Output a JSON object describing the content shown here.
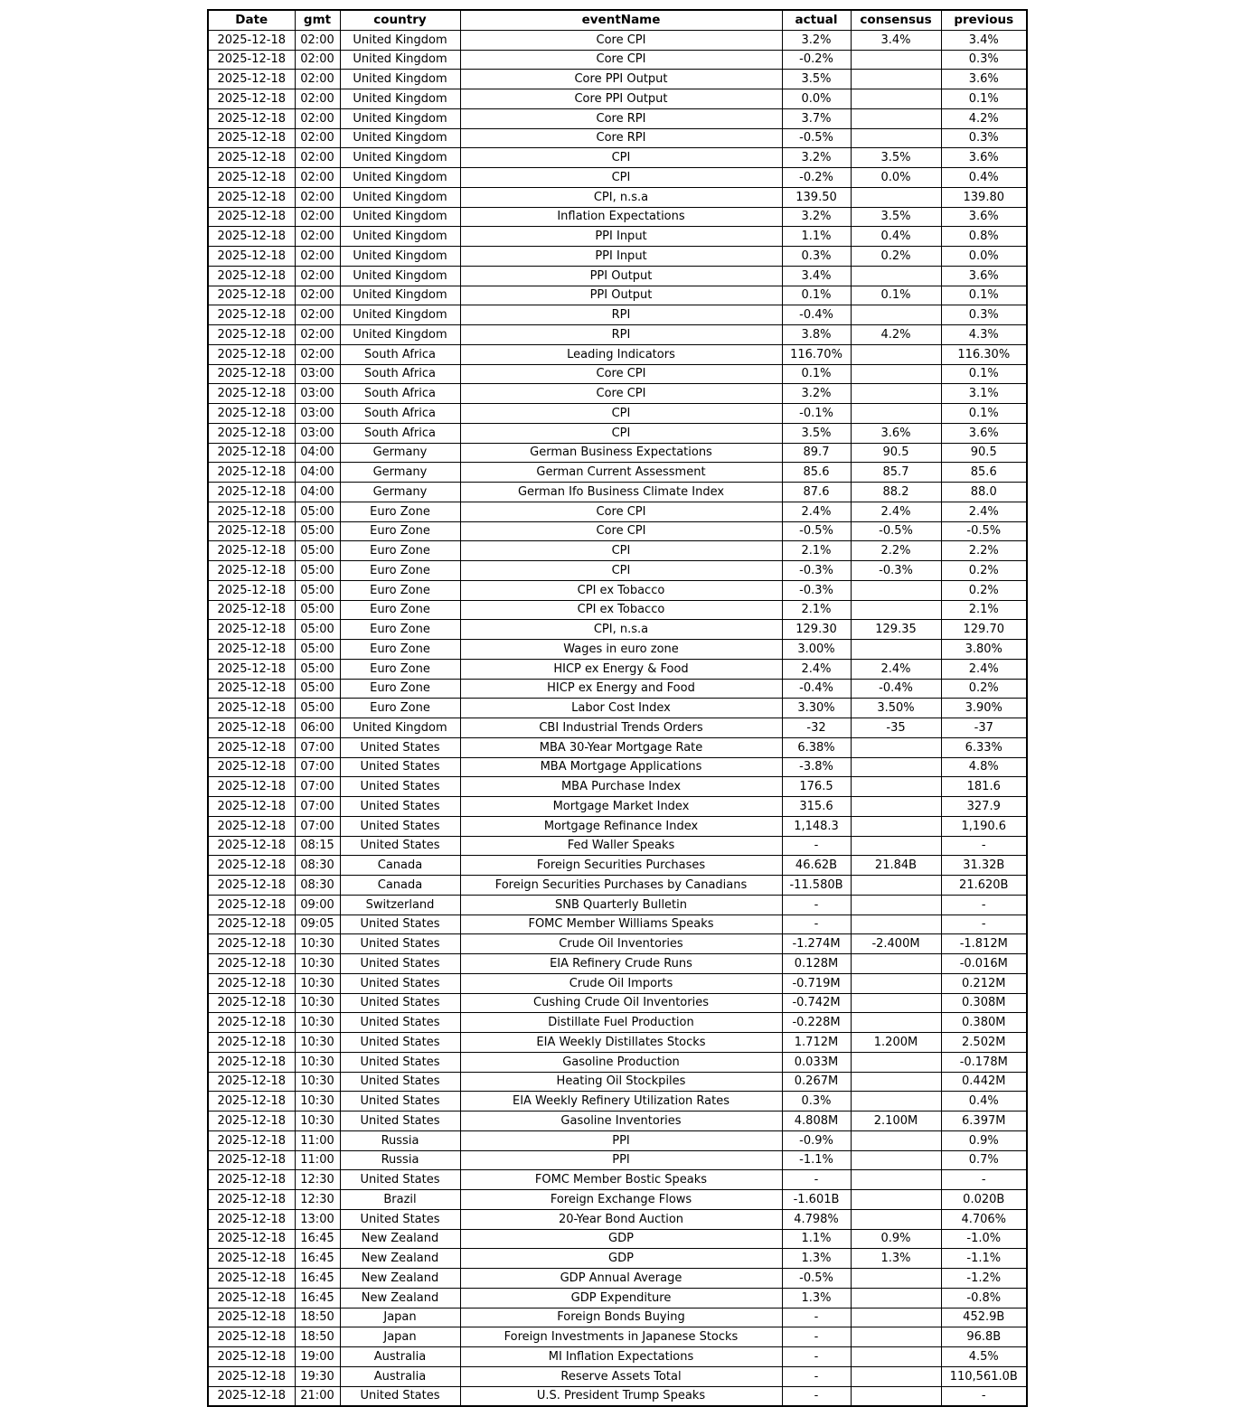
{
  "chart_data": {
    "type": "table",
    "columns": [
      "Date",
      "gmt",
      "country",
      "eventName",
      "actual",
      "consensus",
      "previous"
    ],
    "rows": [
      [
        "2025-12-18",
        "02:00",
        "United Kingdom",
        "Core CPI",
        "3.2%",
        "3.4%",
        "3.4%"
      ],
      [
        "2025-12-18",
        "02:00",
        "United Kingdom",
        "Core CPI",
        "-0.2%",
        "",
        "0.3%"
      ],
      [
        "2025-12-18",
        "02:00",
        "United Kingdom",
        "Core PPI Output",
        "3.5%",
        "",
        "3.6%"
      ],
      [
        "2025-12-18",
        "02:00",
        "United Kingdom",
        "Core PPI Output",
        "0.0%",
        "",
        "0.1%"
      ],
      [
        "2025-12-18",
        "02:00",
        "United Kingdom",
        "Core RPI",
        "3.7%",
        "",
        "4.2%"
      ],
      [
        "2025-12-18",
        "02:00",
        "United Kingdom",
        "Core RPI",
        "-0.5%",
        "",
        "0.3%"
      ],
      [
        "2025-12-18",
        "02:00",
        "United Kingdom",
        "CPI",
        "3.2%",
        "3.5%",
        "3.6%"
      ],
      [
        "2025-12-18",
        "02:00",
        "United Kingdom",
        "CPI",
        "-0.2%",
        "0.0%",
        "0.4%"
      ],
      [
        "2025-12-18",
        "02:00",
        "United Kingdom",
        "CPI, n.s.a",
        "139.50",
        "",
        "139.80"
      ],
      [
        "2025-12-18",
        "02:00",
        "United Kingdom",
        "Inflation Expectations",
        "3.2%",
        "3.5%",
        "3.6%"
      ],
      [
        "2025-12-18",
        "02:00",
        "United Kingdom",
        "PPI Input",
        "1.1%",
        "0.4%",
        "0.8%"
      ],
      [
        "2025-12-18",
        "02:00",
        "United Kingdom",
        "PPI Input",
        "0.3%",
        "0.2%",
        "0.0%"
      ],
      [
        "2025-12-18",
        "02:00",
        "United Kingdom",
        "PPI Output",
        "3.4%",
        "",
        "3.6%"
      ],
      [
        "2025-12-18",
        "02:00",
        "United Kingdom",
        "PPI Output",
        "0.1%",
        "0.1%",
        "0.1%"
      ],
      [
        "2025-12-18",
        "02:00",
        "United Kingdom",
        "RPI",
        "-0.4%",
        "",
        "0.3%"
      ],
      [
        "2025-12-18",
        "02:00",
        "United Kingdom",
        "RPI",
        "3.8%",
        "4.2%",
        "4.3%"
      ],
      [
        "2025-12-18",
        "02:00",
        "South Africa",
        "Leading Indicators",
        "116.70%",
        "",
        "116.30%"
      ],
      [
        "2025-12-18",
        "03:00",
        "South Africa",
        "Core CPI",
        "0.1%",
        "",
        "0.1%"
      ],
      [
        "2025-12-18",
        "03:00",
        "South Africa",
        "Core CPI",
        "3.2%",
        "",
        "3.1%"
      ],
      [
        "2025-12-18",
        "03:00",
        "South Africa",
        "CPI",
        "-0.1%",
        "",
        "0.1%"
      ],
      [
        "2025-12-18",
        "03:00",
        "South Africa",
        "CPI",
        "3.5%",
        "3.6%",
        "3.6%"
      ],
      [
        "2025-12-18",
        "04:00",
        "Germany",
        "German Business Expectations",
        "89.7",
        "90.5",
        "90.5"
      ],
      [
        "2025-12-18",
        "04:00",
        "Germany",
        "German Current Assessment",
        "85.6",
        "85.7",
        "85.6"
      ],
      [
        "2025-12-18",
        "04:00",
        "Germany",
        "German Ifo Business Climate Index",
        "87.6",
        "88.2",
        "88.0"
      ],
      [
        "2025-12-18",
        "05:00",
        "Euro Zone",
        "Core CPI",
        "2.4%",
        "2.4%",
        "2.4%"
      ],
      [
        "2025-12-18",
        "05:00",
        "Euro Zone",
        "Core CPI",
        "-0.5%",
        "-0.5%",
        "-0.5%"
      ],
      [
        "2025-12-18",
        "05:00",
        "Euro Zone",
        "CPI",
        "2.1%",
        "2.2%",
        "2.2%"
      ],
      [
        "2025-12-18",
        "05:00",
        "Euro Zone",
        "CPI",
        "-0.3%",
        "-0.3%",
        "0.2%"
      ],
      [
        "2025-12-18",
        "05:00",
        "Euro Zone",
        "CPI ex Tobacco",
        "-0.3%",
        "",
        "0.2%"
      ],
      [
        "2025-12-18",
        "05:00",
        "Euro Zone",
        "CPI ex Tobacco",
        "2.1%",
        "",
        "2.1%"
      ],
      [
        "2025-12-18",
        "05:00",
        "Euro Zone",
        "CPI, n.s.a",
        "129.30",
        "129.35",
        "129.70"
      ],
      [
        "2025-12-18",
        "05:00",
        "Euro Zone",
        "Wages in euro zone",
        "3.00%",
        "",
        "3.80%"
      ],
      [
        "2025-12-18",
        "05:00",
        "Euro Zone",
        "HICP ex Energy & Food",
        "2.4%",
        "2.4%",
        "2.4%"
      ],
      [
        "2025-12-18",
        "05:00",
        "Euro Zone",
        "HICP ex Energy and Food",
        "-0.4%",
        "-0.4%",
        "0.2%"
      ],
      [
        "2025-12-18",
        "05:00",
        "Euro Zone",
        "Labor Cost Index",
        "3.30%",
        "3.50%",
        "3.90%"
      ],
      [
        "2025-12-18",
        "06:00",
        "United Kingdom",
        "CBI Industrial Trends Orders",
        "-32",
        "-35",
        "-37"
      ],
      [
        "2025-12-18",
        "07:00",
        "United States",
        "MBA 30-Year Mortgage Rate",
        "6.38%",
        "",
        "6.33%"
      ],
      [
        "2025-12-18",
        "07:00",
        "United States",
        "MBA Mortgage Applications",
        "-3.8%",
        "",
        "4.8%"
      ],
      [
        "2025-12-18",
        "07:00",
        "United States",
        "MBA Purchase Index",
        "176.5",
        "",
        "181.6"
      ],
      [
        "2025-12-18",
        "07:00",
        "United States",
        "Mortgage Market Index",
        "315.6",
        "",
        "327.9"
      ],
      [
        "2025-12-18",
        "07:00",
        "United States",
        "Mortgage Refinance Index",
        "1,148.3",
        "",
        "1,190.6"
      ],
      [
        "2025-12-18",
        "08:15",
        "United States",
        "Fed Waller Speaks",
        "-",
        "",
        "-"
      ],
      [
        "2025-12-18",
        "08:30",
        "Canada",
        "Foreign Securities Purchases",
        "46.62B",
        "21.84B",
        "31.32B"
      ],
      [
        "2025-12-18",
        "08:30",
        "Canada",
        "Foreign Securities Purchases by Canadians",
        "-11.580B",
        "",
        "21.620B"
      ],
      [
        "2025-12-18",
        "09:00",
        "Switzerland",
        "SNB Quarterly Bulletin",
        "-",
        "",
        "-"
      ],
      [
        "2025-12-18",
        "09:05",
        "United States",
        "FOMC Member Williams Speaks",
        "-",
        "",
        "-"
      ],
      [
        "2025-12-18",
        "10:30",
        "United States",
        "Crude Oil Inventories",
        "-1.274M",
        "-2.400M",
        "-1.812M"
      ],
      [
        "2025-12-18",
        "10:30",
        "United States",
        "EIA Refinery Crude Runs",
        "0.128M",
        "",
        "-0.016M"
      ],
      [
        "2025-12-18",
        "10:30",
        "United States",
        "Crude Oil Imports",
        "-0.719M",
        "",
        "0.212M"
      ],
      [
        "2025-12-18",
        "10:30",
        "United States",
        "Cushing Crude Oil Inventories",
        "-0.742M",
        "",
        "0.308M"
      ],
      [
        "2025-12-18",
        "10:30",
        "United States",
        "Distillate Fuel Production",
        "-0.228M",
        "",
        "0.380M"
      ],
      [
        "2025-12-18",
        "10:30",
        "United States",
        "EIA Weekly Distillates Stocks",
        "1.712M",
        "1.200M",
        "2.502M"
      ],
      [
        "2025-12-18",
        "10:30",
        "United States",
        "Gasoline Production",
        "0.033M",
        "",
        "-0.178M"
      ],
      [
        "2025-12-18",
        "10:30",
        "United States",
        "Heating Oil Stockpiles",
        "0.267M",
        "",
        "0.442M"
      ],
      [
        "2025-12-18",
        "10:30",
        "United States",
        "EIA Weekly Refinery Utilization Rates",
        "0.3%",
        "",
        "0.4%"
      ],
      [
        "2025-12-18",
        "10:30",
        "United States",
        "Gasoline Inventories",
        "4.808M",
        "2.100M",
        "6.397M"
      ],
      [
        "2025-12-18",
        "11:00",
        "Russia",
        "PPI",
        "-0.9%",
        "",
        "0.9%"
      ],
      [
        "2025-12-18",
        "11:00",
        "Russia",
        "PPI",
        "-1.1%",
        "",
        "0.7%"
      ],
      [
        "2025-12-18",
        "12:30",
        "United States",
        "FOMC Member Bostic Speaks",
        "-",
        "",
        "-"
      ],
      [
        "2025-12-18",
        "12:30",
        "Brazil",
        "Foreign Exchange Flows",
        "-1.601B",
        "",
        "0.020B"
      ],
      [
        "2025-12-18",
        "13:00",
        "United States",
        "20-Year Bond Auction",
        "4.798%",
        "",
        "4.706%"
      ],
      [
        "2025-12-18",
        "16:45",
        "New Zealand",
        "GDP",
        "1.1%",
        "0.9%",
        "-1.0%"
      ],
      [
        "2025-12-18",
        "16:45",
        "New Zealand",
        "GDP",
        "1.3%",
        "1.3%",
        "-1.1%"
      ],
      [
        "2025-12-18",
        "16:45",
        "New Zealand",
        "GDP Annual Average",
        "-0.5%",
        "",
        "-1.2%"
      ],
      [
        "2025-12-18",
        "16:45",
        "New Zealand",
        "GDP Expenditure",
        "1.3%",
        "",
        "-0.8%"
      ],
      [
        "2025-12-18",
        "18:50",
        "Japan",
        "Foreign Bonds Buying",
        "-",
        "",
        "452.9B"
      ],
      [
        "2025-12-18",
        "18:50",
        "Japan",
        "Foreign Investments in Japanese Stocks",
        "-",
        "",
        "96.8B"
      ],
      [
        "2025-12-18",
        "19:00",
        "Australia",
        "MI Inflation Expectations",
        "-",
        "",
        "4.5%"
      ],
      [
        "2025-12-18",
        "19:30",
        "Australia",
        "Reserve Assets Total",
        "-",
        "",
        "110,561.0B"
      ],
      [
        "2025-12-18",
        "21:00",
        "United States",
        "U.S. President Trump Speaks",
        "-",
        "",
        "-"
      ]
    ],
    "title": "",
    "layout": {
      "grid": "all-borders",
      "text_align": "center",
      "border_color": "#000000",
      "background_color": "#ffffff",
      "text_color": "#000000"
    }
  }
}
